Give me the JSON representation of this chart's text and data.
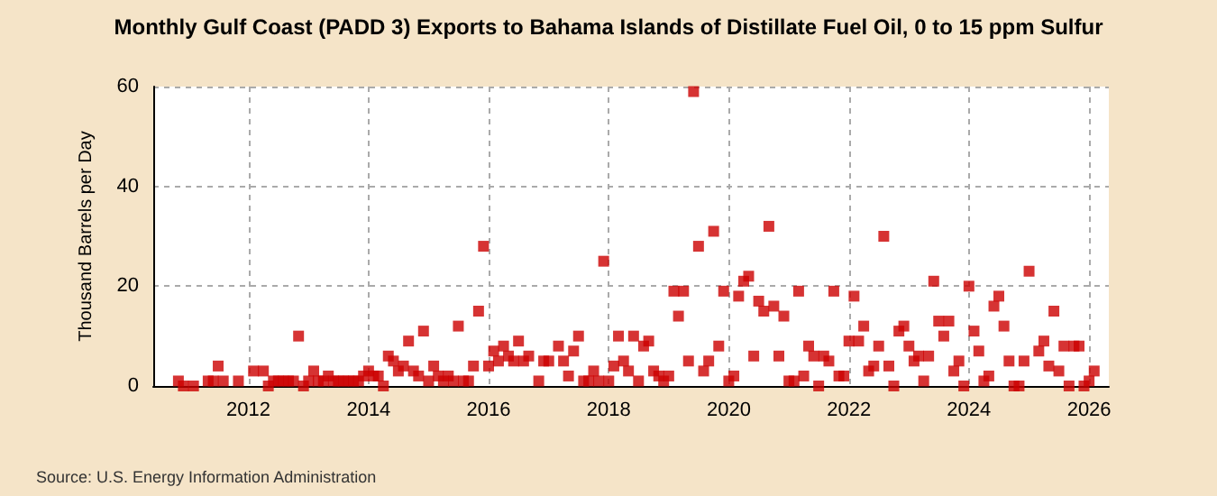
{
  "chart_data": {
    "type": "scatter",
    "title": "Monthly Gulf Coast (PADD 3) Exports to Bahama Islands of Distillate Fuel Oil, 0 to 15 ppm Sulfur",
    "ylabel": "Thousand Barrels per Day",
    "annotations": [
      "Source: U.S. Energy Information Administration"
    ],
    "x": [
      "2010-11",
      "2010-12",
      "2011-02",
      "2011-05",
      "2011-06",
      "2011-07",
      "2011-08",
      "2011-11",
      "2012-02",
      "2012-04",
      "2012-05",
      "2012-06",
      "2012-07",
      "2012-08",
      "2012-09",
      "2012-10",
      "2012-11",
      "2012-12",
      "2013-01",
      "2013-02",
      "2013-03",
      "2013-04",
      "2013-05",
      "2013-06",
      "2013-07",
      "2013-08",
      "2013-09",
      "2013-10",
      "2013-11",
      "2013-12",
      "2014-01",
      "2014-02",
      "2014-03",
      "2014-04",
      "2014-05",
      "2014-06",
      "2014-07",
      "2014-08",
      "2014-09",
      "2014-10",
      "2014-11",
      "2014-12",
      "2015-01",
      "2015-02",
      "2015-03",
      "2015-04",
      "2015-05",
      "2015-06",
      "2015-07",
      "2015-08",
      "2015-09",
      "2015-10",
      "2015-11",
      "2015-12",
      "2016-01",
      "2016-02",
      "2016-03",
      "2016-04",
      "2016-05",
      "2016-06",
      "2016-07",
      "2016-08",
      "2016-09",
      "2016-11",
      "2016-12",
      "2017-01",
      "2017-03",
      "2017-04",
      "2017-05",
      "2017-06",
      "2017-07",
      "2017-08",
      "2017-09",
      "2017-10",
      "2017-11",
      "2017-12",
      "2018-01",
      "2018-02",
      "2018-03",
      "2018-04",
      "2018-05",
      "2018-06",
      "2018-07",
      "2018-08",
      "2018-09",
      "2018-10",
      "2018-11",
      "2018-12",
      "2019-01",
      "2019-02",
      "2019-03",
      "2019-04",
      "2019-05",
      "2019-06",
      "2019-07",
      "2019-08",
      "2019-09",
      "2019-10",
      "2019-11",
      "2019-12",
      "2020-01",
      "2020-02",
      "2020-03",
      "2020-04",
      "2020-05",
      "2020-06",
      "2020-07",
      "2020-08",
      "2020-09",
      "2020-10",
      "2020-11",
      "2020-12",
      "2021-01",
      "2021-02",
      "2021-03",
      "2021-04",
      "2021-05",
      "2021-06",
      "2021-07",
      "2021-08",
      "2021-09",
      "2021-10",
      "2021-11",
      "2021-12",
      "2022-01",
      "2022-02",
      "2022-03",
      "2022-04",
      "2022-05",
      "2022-06",
      "2022-07",
      "2022-08",
      "2022-09",
      "2022-10",
      "2022-11",
      "2022-12",
      "2023-01",
      "2023-02",
      "2023-03",
      "2023-04",
      "2023-05",
      "2023-06",
      "2023-07",
      "2023-08",
      "2023-09",
      "2023-10",
      "2023-11",
      "2023-12",
      "2024-01",
      "2024-02",
      "2024-03",
      "2024-04",
      "2024-05",
      "2024-06",
      "2024-07",
      "2024-08",
      "2024-09",
      "2024-10",
      "2024-11",
      "2024-12",
      "2025-01",
      "2025-03",
      "2025-04",
      "2025-05",
      "2025-06",
      "2025-07",
      "2025-08",
      "2025-09",
      "2025-10",
      "2025-11",
      "2025-12",
      "2026-01",
      "2026-02"
    ],
    "values": [
      1,
      0,
      0,
      1,
      1,
      4,
      1,
      1,
      3,
      3,
      0,
      1,
      1,
      1,
      1,
      1,
      10,
      0,
      1,
      3,
      1,
      1,
      2,
      1,
      1,
      1,
      1,
      1,
      1,
      2,
      3,
      2,
      2,
      0,
      6,
      5,
      3,
      4,
      9,
      3,
      2,
      11,
      1,
      4,
      2,
      1,
      2,
      1,
      12,
      1,
      1,
      4,
      15,
      28,
      4,
      7,
      5,
      8,
      6,
      5,
      9,
      5,
      6,
      1,
      5,
      5,
      8,
      5,
      2,
      7,
      10,
      1,
      1,
      3,
      1,
      25,
      1,
      4,
      10,
      5,
      3,
      10,
      1,
      8,
      9,
      3,
      2,
      1,
      2,
      19,
      14,
      19,
      5,
      59,
      28,
      3,
      5,
      31,
      8,
      19,
      1,
      2,
      18,
      21,
      22,
      6,
      17,
      15,
      32,
      16,
      6,
      14,
      1,
      1,
      19,
      2,
      8,
      6,
      0,
      6,
      5,
      19,
      2,
      2,
      9,
      18,
      9,
      12,
      3,
      4,
      8,
      30,
      4,
      0,
      11,
      12,
      8,
      5,
      6,
      1,
      6,
      21,
      13,
      10,
      13,
      3,
      5,
      0,
      20,
      11,
      7,
      1,
      2,
      16,
      18,
      12,
      5,
      0,
      0,
      5,
      23,
      7,
      9,
      4,
      15,
      3,
      8,
      0,
      8,
      8,
      0,
      1,
      3
    ],
    "color": "#cc0000",
    "marker": "square",
    "xlim": [
      "2010-06",
      "2026-05"
    ],
    "xticks": [
      "2012",
      "2014",
      "2016",
      "2018",
      "2020",
      "2022",
      "2024",
      "2026"
    ],
    "ylim": [
      0,
      60
    ],
    "yticks": [
      0,
      20,
      40,
      60
    ],
    "grid": true
  }
}
